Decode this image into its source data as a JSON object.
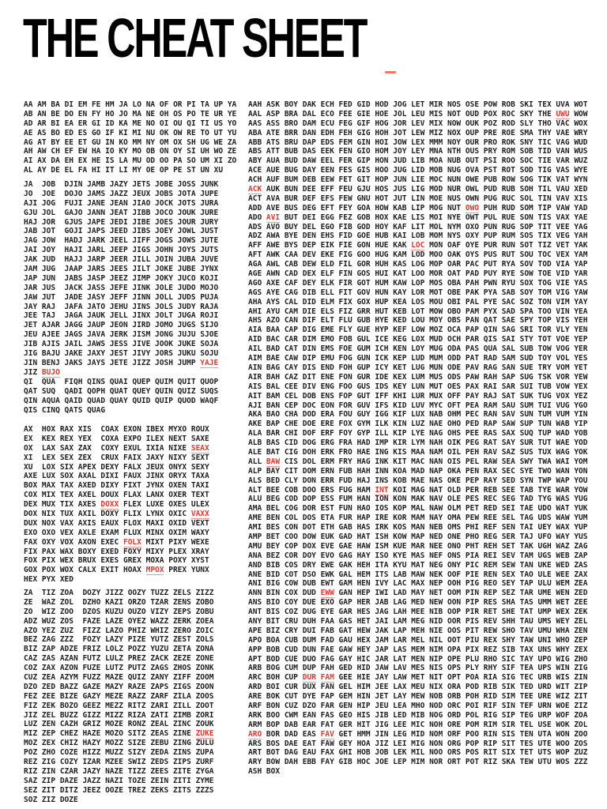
{
  "page": {
    "title": "THE CHEAT SHEET"
  },
  "highlights": {
    "text_color": "#1e1e1e",
    "red_color": "#e8352b",
    "underline_color": "#f1938c",
    "title_dash_color": "#f4756b",
    "red_underlined_words": [
      "UWU",
      "ACK",
      "OWO",
      "AVI",
      "LOC",
      "BAW",
      "INT",
      "EWW",
      "DUR",
      "FAM",
      "ARO",
      "FAV",
      "YAJE",
      "BUJO",
      "SEAX",
      "DOXX",
      "VAXX",
      "FOLX",
      "MPOX",
      "ZUKE"
    ]
  },
  "left_blocks": [
    {
      "lines": [
        "AA AM BA DI EM FE HM JA LO NA OF OR PI TA UP YA",
        "AB AN BE DO EN FY HO JO MA NE OH OS PO TE UR YE",
        "AD AR BI EA ER GI ID KA ME NO OI OU QI TI US YO",
        "AE AS BO ED ES GO IF KI MI NU OK OW RE TO UT YU",
        "AG AT BY EE ET GU IN KO MM NY OM OX SH UG WE ZA",
        "AH AW CH EF EW HA IO KY MO OB ON OY SI UH WO ZE",
        "AI AX DA EH EX HE IS LA MU OD OO PA SO UM XI ZO",
        "AL AY DE EL FA HI IT LI MY OE OP PE ST UN XU"
      ]
    },
    {
      "lines": [
        "JA  JOB  DJIN JAMB JAZY JETS JOBE JOSS JUNK",
        "JO  JOE  DOJO JAMS JAZZ JEUX JOBS JOTA JUPE",
        "AJI JOG  FUJI JANE JEAN JIAO JOCK JOTS JURA",
        "GJU JOL  GAJO JANN JEAT JIBB JOCO JOUK JURE",
        "HAJ JOR  GJUS JAPE JEDI JIBE JOES JOUR JURY",
        "JAB JOT  GOJI JAPS JEED JIBS JOEY JOWL JUST",
        "JAG JOW  HADJ JARK JEEL JIFF JOGS JOWS JUTE",
        "JAI JOY  HAJI JARL JEEP JIGS JOHN JOYS JUTS",
        "JAK JUD  HAJJ JARP JEER JILL JOIN JUBA JUVE",
        "JAM JUG  JAAP JARS JEES JILT JOKE JUBE JYNX",
        "JAP JUN  JABS JASP JEEZ JIMP JOKY JUCO KOJI",
        "JAR JUS  JACK JASS JEFE JINK JOLE JUDO MOJO",
        "JAW JUT  JADE JASY JEFF JINN JOLL JUDS PUJA",
        "JAY RAJ  JAFA JATO JEHU JINS JOLS JUDY RAJA",
        "JEE TAJ  JAGA JAUK JELL JINX JOLT JUGA ROJI",
        "JET AJAR JAGG JAUP JEON JIRD JOMO JUGS SIJO",
        "JEU AJEE JAGS JAVA JERK JISM JONG JUJU SJOE",
        "JIB AJIS JAIL JAWS JESS JIVE JOOK JUKE SOJA",
        "JIG BAJU JAKE JAXY JEST JIVY JORS JUKU SOJU",
        "JIN BENJ JAKS JAYS JETE JIZZ JOSH JUMP YAJE",
        "JIZ BUJO"
      ]
    },
    {
      "lines": [
        "QI  QUA  FIQH QINS QUAI QUEP QUIM QUIT QUOP",
        "QAT SUQ  QADI QOPH QUAT QUEY QUIN QUIZ SUQS",
        "QIN AQUA QAID QUAD QUAY QUID QUIP QUOD WAQF",
        "QIS CINQ QATS QUAG"
      ]
    },
    {
      "lines": [
        "AX  HOX RAX XIS  COAX EXON IBEX MYXO ROUX",
        "EX  KEX REX YEX  COXA EXPO ILEX NEXT SAXE",
        "OX  LAX SAX ZAX  COXY EXUL IXIA NIXE SEAX",
        "XI  LEX SEX ZEX  CRUX FAIX JAXY NIXY SEXT",
        "XU  LOX SIX APEX DEXY FALX JEUX ONYX SEXY",
        "AXE LUX SOX AXAL DIXI FAUX JINX ORYX TAXA",
        "BOX MAX TAX AXED DIXY FIXT JYNX OXEN TAXI",
        "COX MIX TEX AXEL DOUX FLAX LANX OXER TEXT",
        "DEX MUX TIX AXES DOXX FLEX LUXE OXES ULEX",
        "DOX NIX TUX AXIL DOXY FLIX LYNX OXIC VAXX",
        "DUX NOX VAX AXIS EAUX FLOX MAXI OXID VEXT",
        "EXO OXO VEX AXLE EXAM FLUX MINX OXIM WAXY",
        "FAX OXY VOX AXON EXEC FOLX MIXT PIXY WEXE",
        "FIX PAX WAX BOXY EXED FOXY MIXY PLEX XRAY",
        "FOX PIX WEX BRUX EXES GREX MOXA POXY XYST",
        "GOX POX WOX CALX EXIT HOAX MPOX PREX YUNX",
        "HEX PYX XED"
      ]
    },
    {
      "lines": [
        "ZA  TIZ ZOA  DOZY JIZZ OOZY TUZZ ZELS ZIZZ",
        "ZE  WAZ ZOL  DZHO KAZI ORZO TZAR ZENS ZOBO",
        "ZO  WIZ ZOO  DZOS KUZU OUZO VIZY ZEPS ZOBU",
        "ADZ WUZ ZOS  FAZE LAZE OYEZ WAZZ ZERK ZOEA",
        "AZO YEZ ZUZ  FIZZ LAZO PHIZ WHIZ ZERO ZOIC",
        "BEZ ZAG ZZZ  FOZY LAZY PIZE YUTZ ZEST ZOLS",
        "BIZ ZAP ADZE FRIZ LOLZ POZZ YUZU ZETA ZONA",
        "CAZ ZAS AZAN FUTZ LULZ PREZ ZACK ZEZE ZONE",
        "COZ ZAX AZON FUZE LUTZ PUTZ ZAGS ZHOS ZONK",
        "CUZ ZEA AZYM FUZZ MAZE QUIZ ZANY ZIFF ZOOM",
        "DZO ZED BAZZ GAZE MAZY RAZE ZAPS ZIGS ZOON",
        "FEZ ZEE BIZE GAZY MEZE RAZZ ZARF ZILA ZOOS",
        "FIZ ZEK BOZO GEEZ MEZZ RITZ ZARI ZILL ZOOT",
        "JIZ ZEL BUZZ GIZZ MIZZ RIZA ZATI ZIMB ZORI",
        "LUZ ZEN CAZH GRIZ MOZE RONZ ZEAL ZINC ZOUK",
        "MIZ ZEP CHEZ HAZE MOZO SITZ ZEAS ZINE ZUKE",
        "MOZ ZEX CHIZ HAZY MOZZ SIZE ZEBU ZING ZULU",
        "POZ ZHO COZE HIZZ MUZZ SIZY ZEDA ZINS ZUPA",
        "REZ ZIG COZY IZAR MZEE SWIZ ZEDS ZIPS ZURF",
        "RIZ ZIN CZAR JAZY NAZE TIZZ ZEES ZITE ZYGA",
        "SAZ ZIP DAZE JAZZ NAZI TOZE ZEIN ZITI ZYME",
        "SEZ ZIT DITZ JEEZ OOZE TREZ ZEKS ZITS ZZZS",
        "SOZ ZIZ DOZE"
      ]
    }
  ],
  "right_block": {
    "lines": [
      "AAH ASK BOY DAK ECH FED GID HOD JOG LET MIR NOS OSE POW ROB SKI TEX UVA WOT",
      "AAL ASP BRA DAL ECO FEE GIE HOE JOL LEU MIS NOT OUD POX ROC SKY THE UWU WOW",
      "AAS ASS BRO DAM ECU FEG GIF HOG JOR LEV MIX NOW OUK POZ ROD SLY THO VAC WOX",
      "ABA ATE BRR DAN EDH FEH GIG HOH JOT LEW MIZ NOX OUP PRE ROE SMA THY VAE WRY",
      "ABB ATS BRU DAP EDS FEM GIN HOI JOW LEX MMM NOY OUR PRO ROK SNY TIC VAG WUD",
      "ABS ATT BUB DAS EEK FEN GIO HOM JOY LEY MNA NTH OUS PRY ROM SOB TID VAN WUS",
      "ABY AUA BUD DAW EEL FER GIP HON JUD LIB MOA NUB OUT PSI ROO SOC TIE VAR WUZ",
      "ACE AUE BUG DAY EEN FES GIS HOO JUG LID MOB NUG OVA PST ROT SOD TIG VAS WYE",
      "ACH AUF BUM DEB EEW FET GIT HOP JUN LIE MOC NUN OWE PUB ROW SOG TIK VAT WYN",
      "ACK AUK BUN DEE EFF FEU GJU HOS JUS LIG MOD NUR OWL PUD RUB SOH TIL VAU XED",
      "ACT AVA BUR DEF EFS FEW GNU HOT JUT LIN MOE NUS OWN PUG RUC SOL TIN VAV XIS",
      "ADD AVE BUS DEG EFT FEY GOA HOW KAB LIP MOG NUT OWO PUH RUD SOM TIP VAW YAD",
      "ADO AVI BUT DEI EGG FEZ GOB HOX KAE LIS MOI NYE OWT PUL RUE SON TIS VAX YAE",
      "ADS AVO BUY DEL EGO FIB GOD HOY KAF LIT MOL NYM OXO PUN RUG SOP TIT VEE YAG",
      "ADZ AWA BYE DEN EHS FID GOE HUB KAI LOB MOM NYS OXY PUP RUM SOS TIX VEG YAH",
      "AFF AWE BYS DEP EIK FIE GON HUE KAK LOC MON OAF OYE PUR RUN SOT TIZ VET YAK",
      "AFT AWK CAA DEV EKE FIG GOO HUG KAM LOD MOO OAK OYS PUS RUT SOU TOC VEX YAM",
      "AGA AWL CAB DEW ELD FIL GOR HUH KAS LOG MOP OAR PAC PUT RYA SOV TOD VIA YAP",
      "AGE AWN CAD DEX ELF FIN GOS HUI KAT LOO MOR OAT PAD PUY RYE SOW TOE VID YAR",
      "AGO AXE CAF DEY ELK FIR GOT HUM KAW LOP MOS OBA PAH PWN RYU SOX TOG VIE YAS",
      "AGS AYE CAG DIB ELL FIT GOV HUN KAY LOR MOT OBE PAK PYA SAB SOY TOM VIG YAW",
      "AHA AYS CAL DID ELM FIX GOX HUP KEA LOS MOU OBI PAL PYE SAC SOZ TON VIM YAY",
      "AHI AYU CAM DIE ELS FIZ GRR HUT KEB LOT MOW OBO PAM PYX SAD SPA TOO VIN YEA",
      "AHS AZO CAN DIF ELT FLU GUB HYE KED LOU MOY OBS PAN QAT SAE SPY TOP VIS YEH",
      "AIA BAA CAP DIG EME FLY GUE HYP KEF LOW MOZ OCA PAP QIN SAG SRI TOR VLY YEN",
      "AID BAC CAR DIM EMO FOB GUL ICE KEG LOX MUD OCH PAR QIS SAI STY TOT VOE YEP",
      "AIL BAD CAT DIN EMS FOE GUM ICH KEN LOY MUG ODA PAS QUA SAL SUB TOW VOG YER",
      "AIM BAE CAW DIP EMU FOG GUN ICK KEP LUD MUM ODD PAT RAD SAM SUD TOY VOL YES",
      "AIN BAG CAY DIS END FOH GUP ICY KET LUG MUN ODE PAV RAG SAN SUE TRY VOM YET",
      "AIR BAH CAZ DIT ENE FON GUR IDE KEX LUM MUS ODS PAW RAH SAP SUG TSK VOR YEW",
      "AIS BAL CEE DIV ENG FOO GUS IDS KEY LUN MUT OES PAX RAI SAR SUI TUB VOW YEX",
      "AIT BAM CEL DOB ENS FOP GUT IFF KHI LUR MUX OFF PAY RAJ SAT SUK TUG VOX YEZ",
      "AJI BAN CEP DOC EON FOR GUV IFS KID LUV MYC OFT PEA RAM SAU SUM TUI VUG YGO",
      "AKA BAO CHA DOD ERA FOU GUY IGG KIF LUX NAB OHM PEC RAN SAV SUN TUM VUM YIN",
      "AKE BAP CHE DOE ERE FOX GYM ILK KIN LUZ NAE OHO PED RAP SAW SUP TUN WAB YIP",
      "ALA BAR CHI DOF ERF FOY GYP ILL KIP LYE NAG OHS PEE RAS SAX SUQ TUP WAD YOB",
      "ALB BAS CID DOG ERG FRA HAD IMP KIR LYM NAH OIK PEG RAT SAY SUR TUT WAE YOD",
      "ALE BAT CIG DOH ERK FRO HAE ING KIS MAA NAM OIL PEH RAV SAZ SUS TUX WAG YOK",
      "ALL BAW CIS DOL ERM FRY HAG INK KIT MAC NAN OIS PEL RAW SEA SWY TWA WAI YOM",
      "ALP BAY CIT DOM ERN FUB HAH INN KOA MAD NAP OKA PEN RAX SEC SYE TWO WAN YON",
      "ALS BED CLY DON ERR FUD HAJ INS KOB MAE NAS OKE PEP RAY SED SYN TWP WAP YOU",
      "ALT BEE COB DOO ERS FUG HAM INT KOI MAG NAT OLD PER REB SEE TAB TYE WAR YOW",
      "ALU BEG COD DOP ESS FUM HAN ION KON MAK NAV OLE PES REC SEG TAD TYG WAS YUG",
      "AMA BEL COG DOR EST FUN HAO IOS KOP MAL NAW OLM PET RED SEI TAE UDO WAT YUK",
      "AME BEN COL DOS ETA FUR HAP IRE KOR MAM NAY OMA PEW REE SEL TAG UDS WAW YUM",
      "AMI BES CON DOT ETH GAB HAS IRK KOS MAN NEB OMS PHI REF SEN TAI UEY WAX YUP",
      "AMP BET COO DOW EUK GAD HAT ISH KOW MAP NED ONE PHO REG SER TAJ UFO WAY YUS",
      "AMU BEY COP DOX EVE GAE HAW ISM KUE MAR NEE ONO PHT REH SET TAK UGH WAZ ZAG",
      "ANA BEZ COR DOY EVO GAG HAY ISO KYE MAS NEF ONS PIA REI SEV TAM UGS WEB ZAP",
      "AND BIB COS DRY EWE GAK HEH ITA KYU MAT NEG ONY PIC REM SEW TAN UKE WED ZAS",
      "ANE BID COT DSO EWK GAL HEM ITS LAB MAW NEK OOF PIE REN SEX TAO ULE WEE ZAX",
      "ANI BIG COW DUB EWT GAM HEN IVY LAC MAX NEP OOH PIG REO SEY TAP ULU WEM ZEA",
      "ANN BIN COX DUD EWW GAN HEP IWI LAD MAY NET OOM PIN REP SEZ TAR UME WEN ZED",
      "ANS BIO COY DUE EXO GAP HER JAB LAG MED NEW OON PIP RES SHA TAS UMM WET ZEE",
      "ANT BIS COZ DUG EYE GAR HES JAG LAH MEE NIB OOP PIR RET SHE TAT UMP WEX ZEK",
      "ANY BIT CRU DUH FAA GAS HET JAI LAM MEG NID OOR PIS REV SHH TAU UMS WEY ZEL",
      "APE BIZ CRY DUI FAB GAT HEW JAK LAP MEH NIE OOS PIT REW SHO TAV UMU WHA ZEN",
      "APO BOA CUB DUM FAD GAU HEX JAM LAR MEL NIL OOT PIU REX SHY TAW UNI WHO ZEP",
      "APP BOB CUD DUN FAE GAW HEY JAP LAS MEM NIM OPA PIX REZ SIB TAX UNS WHY ZEX",
      "APT BOD CUE DUO FAG GAY HIC JAR LAT MEN NIP OPE PLU RHO SIC TAY UPO WIG ZHO",
      "ARB BOG CUM DUP FAH GED HID JAW LAV MES NIS OPS PLY RHY SIF TEA UPS WIN ZIG",
      "ARC BOH CUP DUR FAM GEE HIE JAY LAW MET NIT OPT POA RIA SIG TEC URB WIS ZIN",
      "ARD BOI CUR DUX FAN GEL HIM JEE LAX MEU NIX ORA POD RIB SIK TED URD WIT ZIP",
      "ARE BOK CUT DYE FAP GEM HIN JET LAY MEW NOB ORB POH RID SIM TEE URE WIZ ZIT",
      "ARF BON CUZ DZO FAR GEN HIP JEU LEA MHO NOD ORC POI RIF SIN TEF URN WOE ZIZ",
      "ARK BOO CWM EAN FAS GEO HIS JIB LED MIB NOG ORD POL RIG SIP TEG URP WOF ZOA",
      "ARM BOP DAB EAR FAT GER HIT JIG LEE MIC NOH ORE POM RIM SIR TEL USE WOK ZOL",
      "ARO BOR DAD EAS FAV GET HMM JIN LEG MID NOM ORF POO RIN SIS TEN UTA WON ZOO",
      "ARS BOS DAE EAT FAW GEY HOA JIZ LEI MIG NON ORG POP RIP SIT TES UTE WOO ZOS",
      "ART BOT DAG EAU FAX GHI HOB JOB LEK MIL NOO ORS POS RIT SIX TET UTS WOP ZUZ",
      "ARY BOW DAH EBB FAY GIB HOC JOE LEP MIM NOR ORT POT RIZ SKA TEW UTU WOS ZZZ",
      "ASH BOX"
    ]
  }
}
